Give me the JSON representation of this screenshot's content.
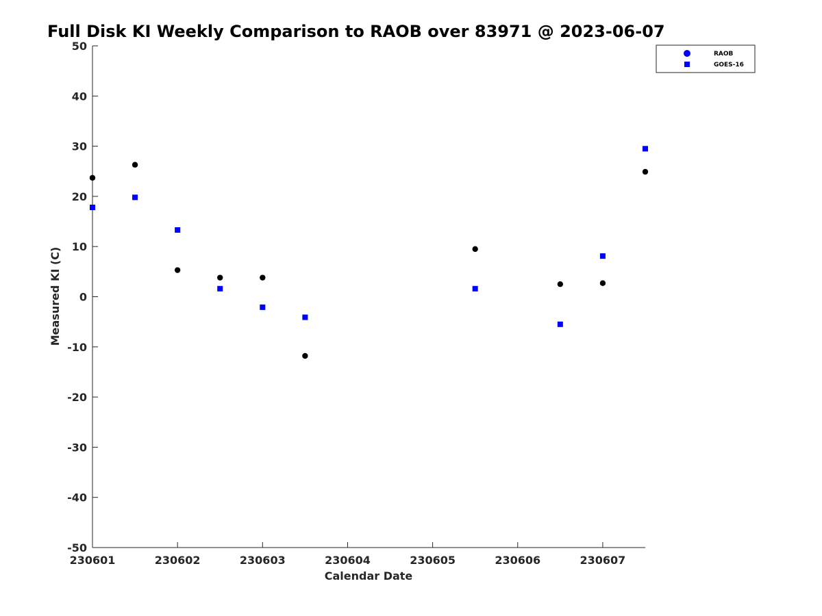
{
  "chart_data": {
    "type": "scatter",
    "title": "Full Disk KI Weekly Comparison to RAOB over 83971 @ 2023-06-07",
    "xlabel": "Calendar Date",
    "ylabel": "Measured KI (C)",
    "xlim": [
      0,
      6.5
    ],
    "ylim": [
      -50,
      50
    ],
    "x_ticks": [
      {
        "value": 0,
        "label": "230601"
      },
      {
        "value": 1,
        "label": "230602"
      },
      {
        "value": 2,
        "label": "230603"
      },
      {
        "value": 3,
        "label": "230604"
      },
      {
        "value": 4,
        "label": "230605"
      },
      {
        "value": 5,
        "label": "230606"
      },
      {
        "value": 6,
        "label": "230607"
      }
    ],
    "y_ticks": [
      {
        "value": 50,
        "label": "50"
      },
      {
        "value": 40,
        "label": "40"
      },
      {
        "value": 30,
        "label": "30"
      },
      {
        "value": 20,
        "label": "20"
      },
      {
        "value": 10,
        "label": "10"
      },
      {
        "value": 0,
        "label": "0"
      },
      {
        "value": -10,
        "label": "-10"
      },
      {
        "value": -20,
        "label": "-20"
      },
      {
        "value": -30,
        "label": "-30"
      },
      {
        "value": -40,
        "label": "-40"
      },
      {
        "value": -50,
        "label": "-50"
      }
    ],
    "grid": false,
    "legend_position": "top-right",
    "series": [
      {
        "name": "RAOB",
        "marker": "circle",
        "color": "#000000",
        "legend_color": "#0000ff",
        "points": [
          {
            "x": 0.0,
            "y": 23.7
          },
          {
            "x": 0.5,
            "y": 26.3
          },
          {
            "x": 1.0,
            "y": 5.3
          },
          {
            "x": 1.5,
            "y": 3.8
          },
          {
            "x": 2.0,
            "y": 3.8
          },
          {
            "x": 2.5,
            "y": -11.8
          },
          {
            "x": 4.5,
            "y": 9.5
          },
          {
            "x": 5.5,
            "y": 2.5
          },
          {
            "x": 6.0,
            "y": 2.7
          },
          {
            "x": 6.5,
            "y": 24.9
          }
        ]
      },
      {
        "name": "GOES-16",
        "marker": "square",
        "color": "#0000ff",
        "legend_color": "#0000ff",
        "points": [
          {
            "x": 0.0,
            "y": 17.8
          },
          {
            "x": 0.5,
            "y": 19.8
          },
          {
            "x": 1.0,
            "y": 13.3
          },
          {
            "x": 1.5,
            "y": 1.6
          },
          {
            "x": 2.0,
            "y": -2.1
          },
          {
            "x": 2.5,
            "y": -4.1
          },
          {
            "x": 4.5,
            "y": 1.6
          },
          {
            "x": 5.5,
            "y": -5.5
          },
          {
            "x": 6.0,
            "y": 8.1
          },
          {
            "x": 6.5,
            "y": 29.5
          }
        ]
      }
    ]
  }
}
